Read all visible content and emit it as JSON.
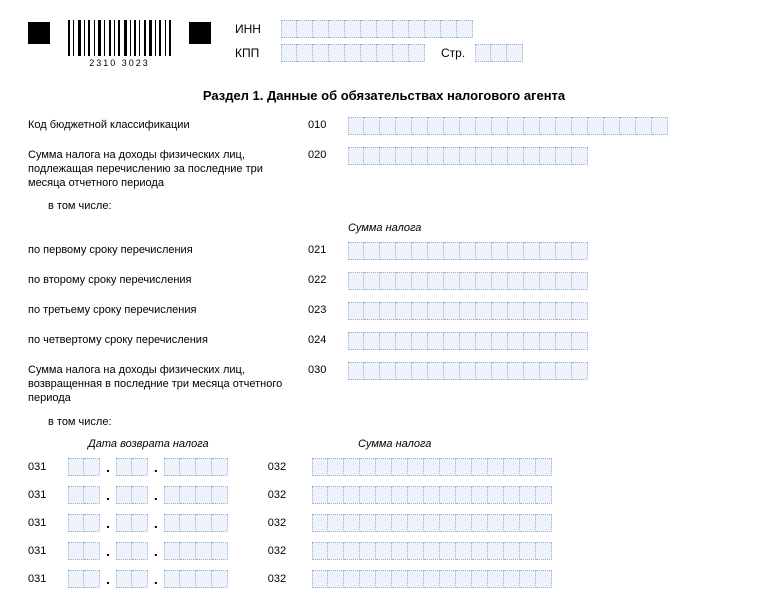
{
  "header": {
    "barcode_number": "2310  3023",
    "inn_label": "ИНН",
    "kpp_label": "КПП",
    "page_label": "Стр.",
    "inn_cells": 12,
    "kpp_cells": 9,
    "page_cells": 3
  },
  "section": {
    "title": "Раздел 1. Данные об обязательствах налогового агента"
  },
  "rows": {
    "r010": {
      "label": "Код бюджетной классификации",
      "code": "010",
      "cells": 20
    },
    "r020": {
      "label": "Сумма налога на доходы физических лиц, подлежащая перечислению за последние три месяца отчетного периода",
      "code": "020",
      "cells": 15
    },
    "including_label": "в том числе:",
    "sum_header": "Сумма налога",
    "r021": {
      "label": "по первому сроку перечисления",
      "code": "021",
      "cells": 15
    },
    "r022": {
      "label": "по второму сроку перечисления",
      "code": "022",
      "cells": 15
    },
    "r023": {
      "label": "по третьему сроку перечисления",
      "code": "023",
      "cells": 15
    },
    "r024": {
      "label": "по четвертому сроку перечисления",
      "code": "024",
      "cells": 15
    },
    "r030": {
      "label": "Сумма налога на доходы физических лиц, возвращенная в последние три месяца отчетного периода",
      "code": "030",
      "cells": 15
    }
  },
  "dual": {
    "date_header": "Дата возврата налога",
    "sum_header": "Сумма налога",
    "left_code": "031",
    "right_code": "032",
    "right_cells": 15,
    "row_count": 5
  },
  "style": {
    "cell_bg": "#eef2fa",
    "cell_border": "#9bb0d0"
  }
}
